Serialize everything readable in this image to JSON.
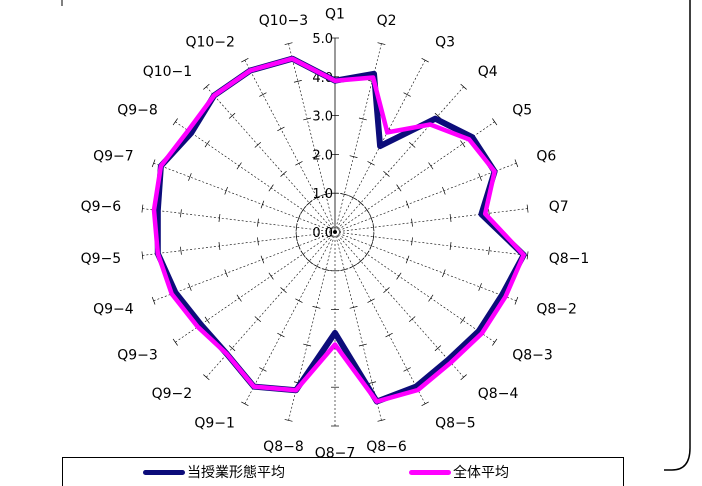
{
  "chart_data": {
    "type": "radar",
    "categories": [
      "Q1",
      "Q2",
      "Q3",
      "Q4",
      "Q5",
      "Q6",
      "Q7",
      "Q8−1",
      "Q8−2",
      "Q8−3",
      "Q8−4",
      "Q8−5",
      "Q8−6",
      "Q8−7",
      "Q8−8",
      "Q9−1",
      "Q9−2",
      "Q9−3",
      "Q9−4",
      "Q9−5",
      "Q9−6",
      "Q9−7",
      "Q9−8",
      "Q10−1",
      "Q10−2",
      "Q10−3"
    ],
    "rlim": [
      0,
      5
    ],
    "rticks": [
      "0.0",
      "1.0",
      "2.0",
      "3.0",
      "4.0",
      "5.0"
    ],
    "series": [
      {
        "name": "当授業形態平均",
        "color": "#0c0c7a",
        "values": [
          3.9,
          4.2,
          2.5,
          3.9,
          4.3,
          4.4,
          3.8,
          4.9,
          4.6,
          4.5,
          4.4,
          4.5,
          4.5,
          2.6,
          4.2,
          4.5,
          4.2,
          4.2,
          4.4,
          4.6,
          4.6,
          4.8,
          4.5,
          4.7,
          4.7,
          4.6
        ]
      },
      {
        "name": "全体平均",
        "color": "#ff00ff",
        "values": [
          3.9,
          4.1,
          2.9,
          3.7,
          4.2,
          4.4,
          3.9,
          4.9,
          4.7,
          4.6,
          4.5,
          4.6,
          4.5,
          2.9,
          4.2,
          4.5,
          4.2,
          4.3,
          4.5,
          4.6,
          4.7,
          4.8,
          4.6,
          4.7,
          4.7,
          4.6
        ]
      }
    ],
    "legend_position": "bottom",
    "grid": true
  }
}
